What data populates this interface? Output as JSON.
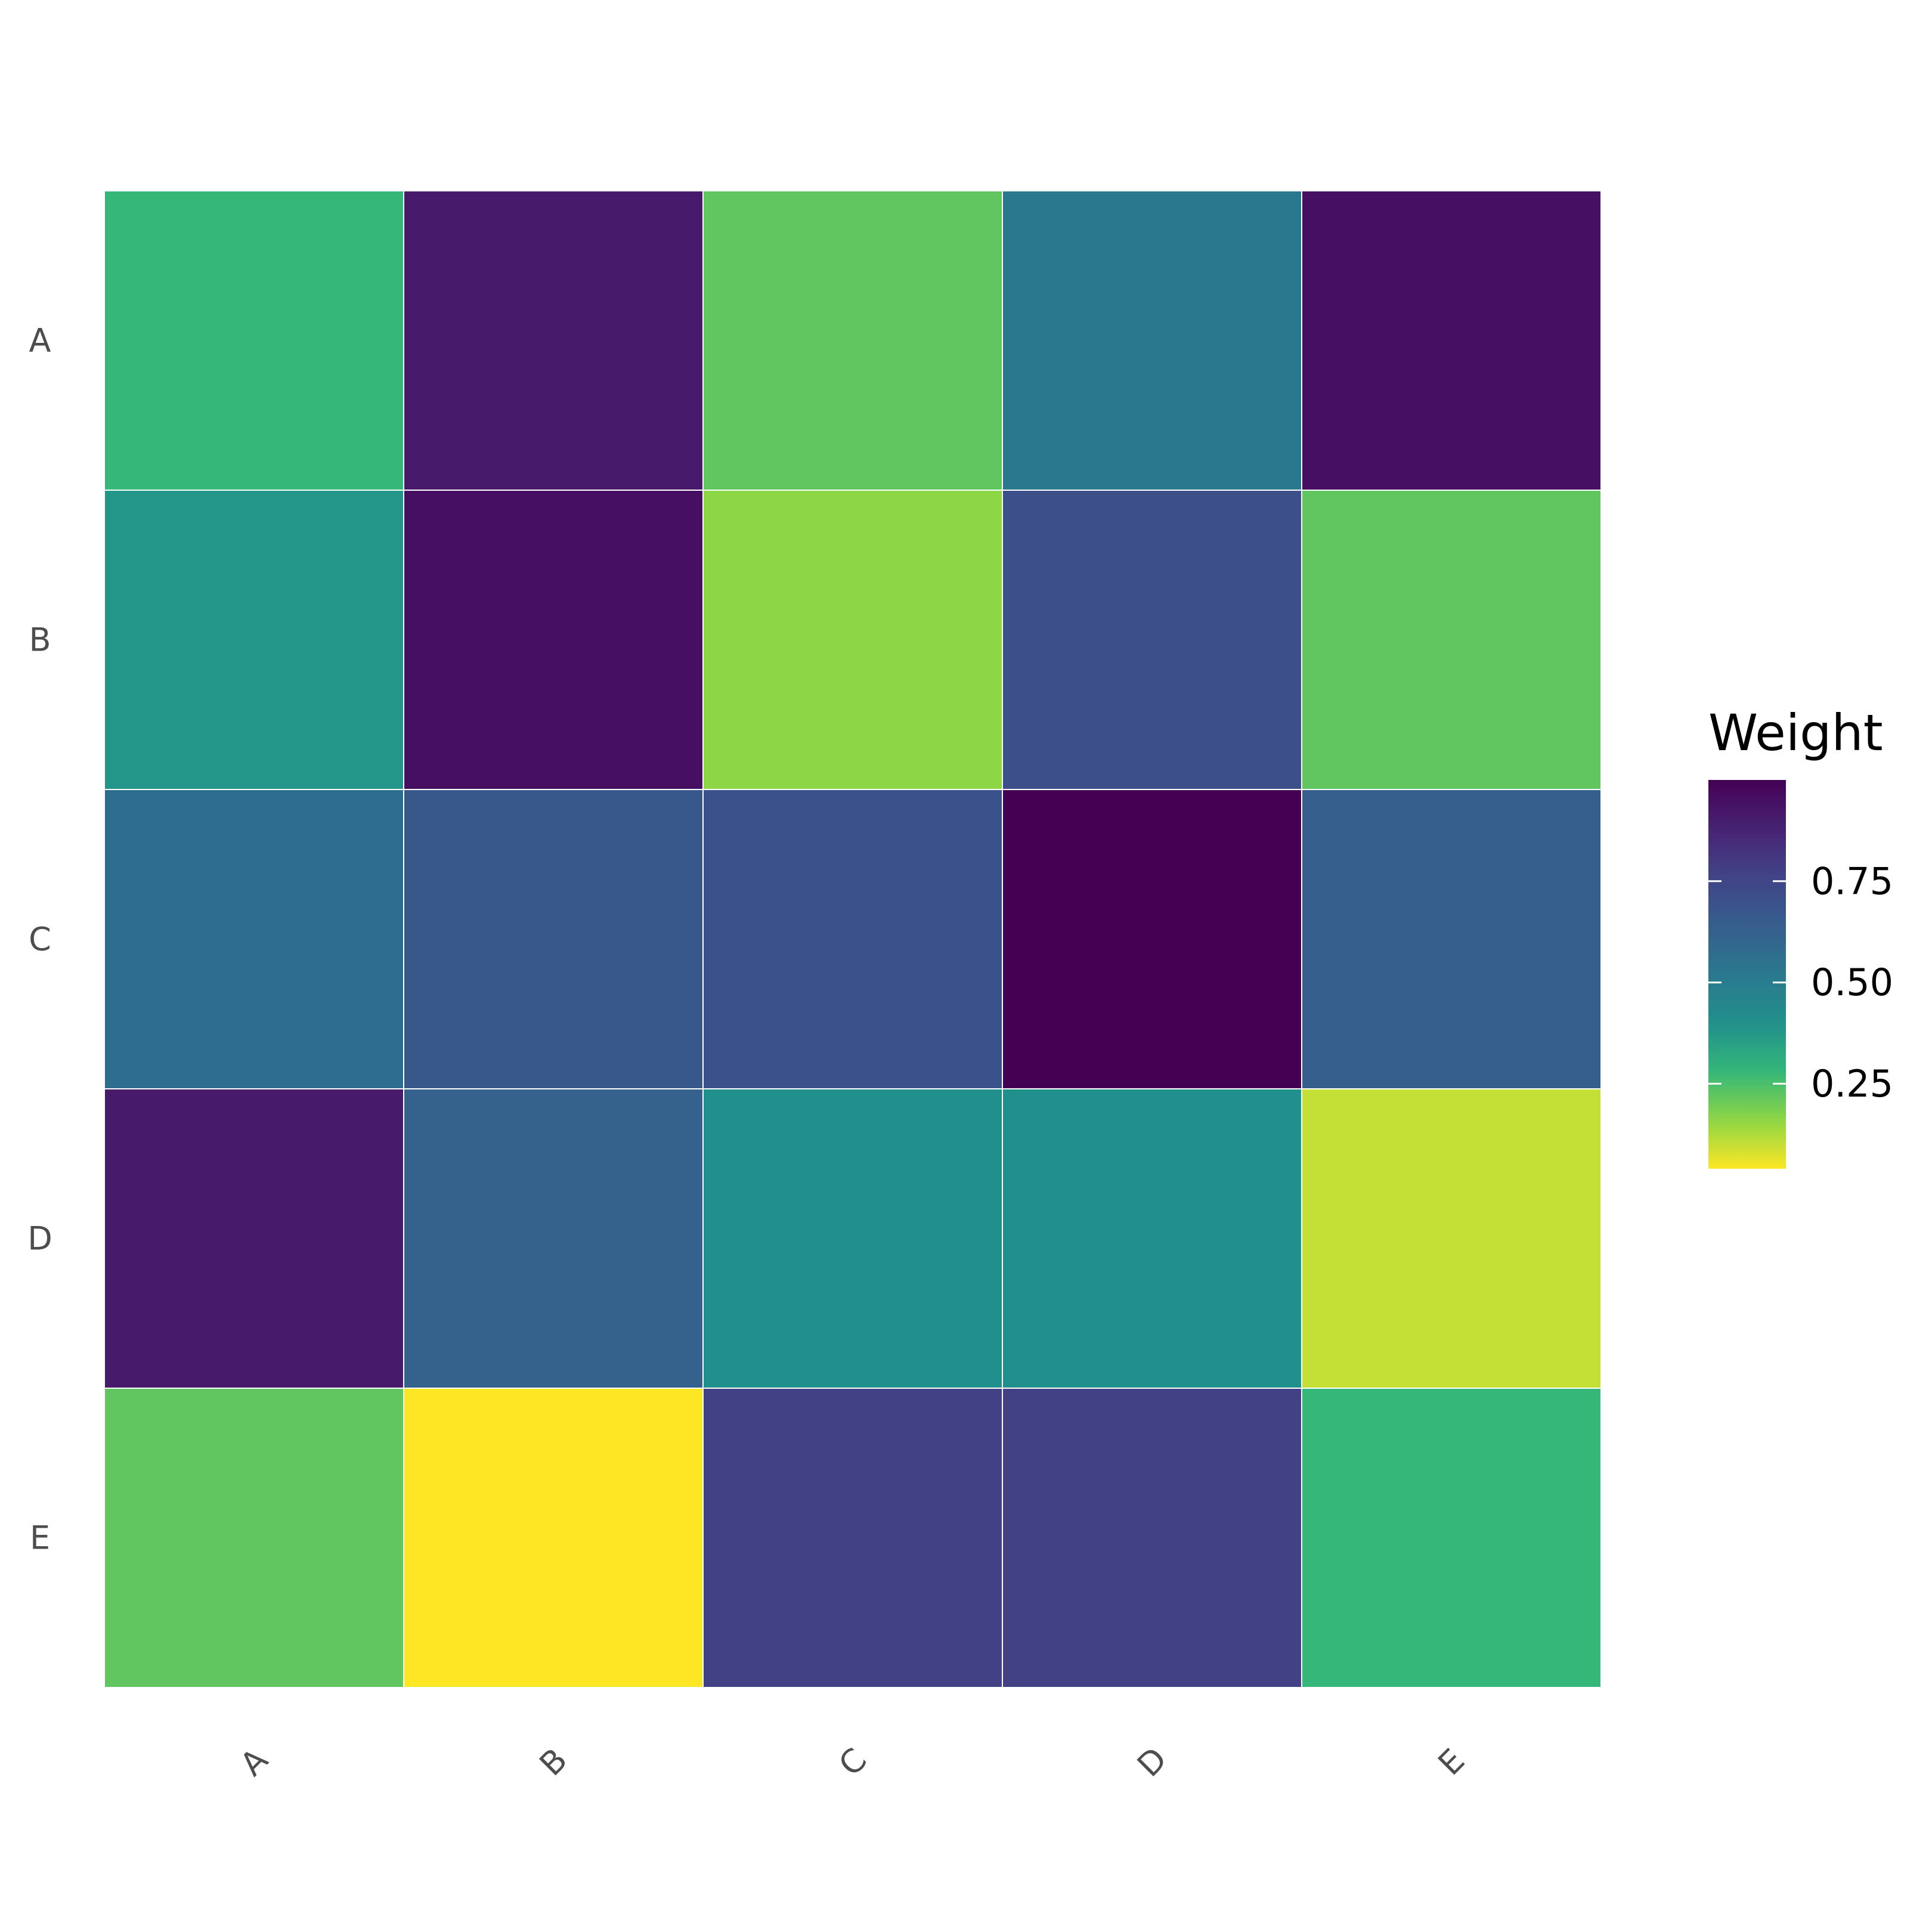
{
  "chart_data": {
    "type": "heatmap",
    "title": "",
    "xlabel": "",
    "ylabel": "",
    "x_categories": [
      "A",
      "B",
      "C",
      "D",
      "E"
    ],
    "y_categories": [
      "A",
      "B",
      "C",
      "D",
      "E"
    ],
    "values": [
      [
        0.28,
        0.91,
        0.22,
        0.52,
        0.95
      ],
      [
        0.38,
        0.95,
        0.16,
        0.71,
        0.22
      ],
      [
        0.57,
        0.67,
        0.7,
        1.0,
        0.64
      ],
      [
        0.91,
        0.62,
        0.4,
        0.4,
        0.1
      ],
      [
        0.22,
        0.04,
        0.77,
        0.77,
        0.28
      ]
    ],
    "colorscale": "viridis-reversed",
    "value_range": [
      0.04,
      1.0
    ],
    "legend": {
      "title": "Weight",
      "position": "right",
      "ticks": [
        0.25,
        0.5,
        0.75
      ],
      "tick_labels": [
        "0.25",
        "0.50",
        "0.75"
      ]
    },
    "grid": false
  }
}
